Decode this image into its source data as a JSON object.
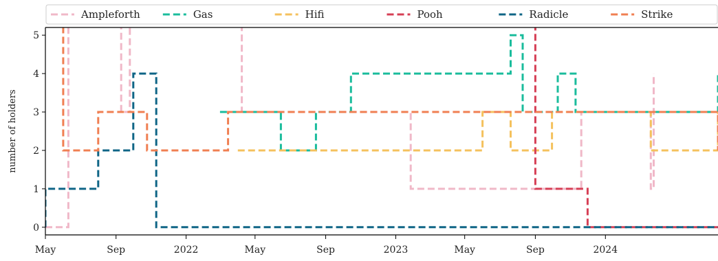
{
  "chart_data": {
    "type": "line",
    "title": "",
    "xlabel": "",
    "ylabel": "number of holders",
    "ylim": [
      -0.2,
      5.2
    ],
    "yticks": [
      0,
      1,
      2,
      3,
      4,
      5
    ],
    "xlim": [
      "2021-05-01",
      "2024-07-15"
    ],
    "xticks": [
      {
        "date": "2021-05-01",
        "label": "May"
      },
      {
        "date": "2021-09-01",
        "label": "Sep"
      },
      {
        "date": "2022-01-01",
        "label": "2022"
      },
      {
        "date": "2022-05-01",
        "label": "May"
      },
      {
        "date": "2022-09-01",
        "label": "Sep"
      },
      {
        "date": "2023-01-01",
        "label": "2023"
      },
      {
        "date": "2023-05-01",
        "label": "May"
      },
      {
        "date": "2023-09-01",
        "label": "Sep"
      },
      {
        "date": "2024-01-01",
        "label": "2024"
      }
    ],
    "grid": false,
    "legend": "top",
    "step": "post",
    "line_style": "dashed",
    "series": [
      {
        "name": "Ampleforth",
        "color": "#f0b8c8",
        "x": [
          "2021-05-01",
          "2021-05-10",
          "2021-06-10",
          "2021-09-10",
          "2021-09-25",
          "2022-04-08",
          "2022-12-25",
          "2023-01-27",
          "2023-11-20",
          "2023-12-01",
          "2024-03-20",
          "2024-03-25"
        ],
        "values": [
          0,
          0,
          5.3,
          3,
          5.3,
          3,
          3,
          1,
          3,
          3,
          1,
          4
        ]
      },
      {
        "name": "Gas",
        "color": "#1abc9c",
        "x": [
          "2022-03-01",
          "2022-03-20",
          "2022-06-15",
          "2022-08-15",
          "2022-10-15",
          "2023-03-20",
          "2023-07-20",
          "2023-08-10",
          "2023-10-10",
          "2023-11-10",
          "2024-07-15"
        ],
        "values": [
          3,
          3,
          2,
          3,
          4,
          4,
          5,
          3,
          4,
          3,
          4
        ]
      },
      {
        "name": "Hifi",
        "color": "#f4c15d",
        "x": [
          "2022-04-01",
          "2023-06-01",
          "2023-07-20",
          "2023-09-30",
          "2024-03-20",
          "2024-07-15"
        ],
        "values": [
          2,
          3,
          2,
          3,
          2,
          3
        ]
      },
      {
        "name": "Pooh",
        "color": "#d63f55",
        "x": [
          "2023-09-01",
          "2023-09-01",
          "2023-12-01",
          "2024-07-15"
        ],
        "values": [
          5.3,
          1,
          0,
          0
        ]
      },
      {
        "name": "Radicle",
        "color": "#0f6586",
        "x": [
          "2021-05-01",
          "2021-05-01",
          "2021-08-01",
          "2021-10-01",
          "2021-11-10",
          "2024-07-15"
        ],
        "values": [
          0,
          1,
          2,
          4,
          0,
          0
        ]
      },
      {
        "name": "Strike",
        "color": "#f07f52",
        "x": [
          "2021-05-01",
          "2021-06-01",
          "2021-08-01",
          "2021-10-25",
          "2022-03-15",
          "2024-07-15"
        ],
        "values": [
          5.3,
          2,
          3,
          2,
          3,
          2
        ]
      }
    ]
  }
}
